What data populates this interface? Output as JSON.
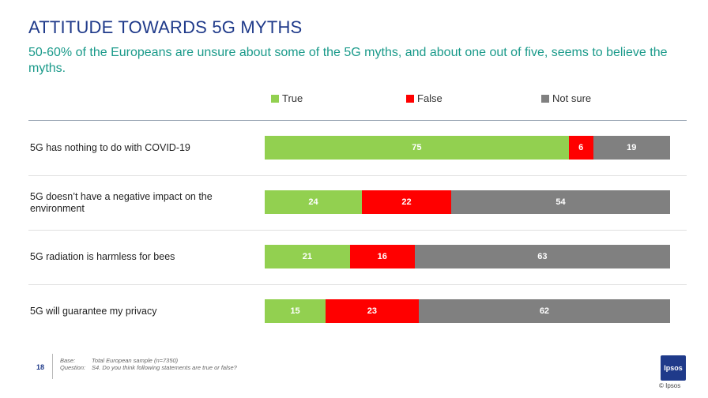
{
  "header": {
    "title": "ATTITUDE TOWARDS 5G MYTHS",
    "subtitle": "50-60% of the Europeans are unsure about some of the 5G myths, and about one out of five, seems to believe the myths."
  },
  "colors": {
    "true": "#92d050",
    "false": "#ff0000",
    "not_sure": "#808080"
  },
  "chart_data": {
    "type": "bar",
    "orientation": "horizontal",
    "stacked": true,
    "categories": [
      "5G has nothing to do with COVID-19",
      "5G doesn’t have a negative impact on the environment",
      "5G radiation is harmless for bees",
      "5G will guarantee my privacy"
    ],
    "series": [
      {
        "name": "True",
        "values": [
          75,
          24,
          21,
          15
        ]
      },
      {
        "name": "False",
        "values": [
          6,
          22,
          16,
          23
        ]
      },
      {
        "name": "Not sure",
        "values": [
          19,
          54,
          63,
          62
        ]
      }
    ],
    "xlim": [
      0,
      100
    ],
    "legend_position": "top",
    "grid": false
  },
  "footer": {
    "page_number": "18",
    "base_label": "Base:",
    "base_value": "Total European sample (n=7350)",
    "question_label": "Question:",
    "question_value": "S4. Do you think following statements are true or false?",
    "logo_text": "Ipsos",
    "copyright": "© Ipsos"
  }
}
